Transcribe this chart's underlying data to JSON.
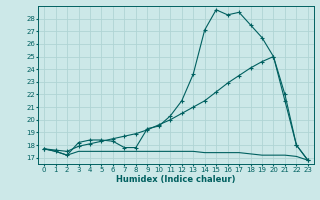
{
  "xlabel": "Humidex (Indice chaleur)",
  "bg_color": "#cce8e8",
  "grid_color": "#b0d4d4",
  "line_color": "#006060",
  "xlim": [
    -0.5,
    23.5
  ],
  "ylim": [
    16.5,
    29.0
  ],
  "xticks": [
    0,
    1,
    2,
    3,
    4,
    5,
    6,
    7,
    8,
    9,
    10,
    11,
    12,
    13,
    14,
    15,
    16,
    17,
    18,
    19,
    20,
    21,
    22,
    23
  ],
  "yticks": [
    17,
    18,
    19,
    20,
    21,
    22,
    23,
    24,
    25,
    26,
    27,
    28
  ],
  "line1_x": [
    0,
    1,
    2,
    3,
    4,
    5,
    6,
    7,
    8,
    9,
    10,
    11,
    12,
    13,
    14,
    15,
    16,
    17,
    18,
    19,
    20,
    21,
    22,
    23
  ],
  "line1_y": [
    17.7,
    17.5,
    17.2,
    18.2,
    18.4,
    18.4,
    18.3,
    17.8,
    17.8,
    19.3,
    19.5,
    20.3,
    21.5,
    23.6,
    27.1,
    28.7,
    28.3,
    28.5,
    27.5,
    26.5,
    25.0,
    21.5,
    18.0,
    16.8
  ],
  "line2_x": [
    0,
    1,
    2,
    3,
    4,
    5,
    6,
    7,
    8,
    9,
    10,
    11,
    12,
    13,
    14,
    15,
    16,
    17,
    18,
    19,
    20,
    21,
    22,
    23
  ],
  "line2_y": [
    17.7,
    17.6,
    17.5,
    17.9,
    18.1,
    18.3,
    18.5,
    18.7,
    18.9,
    19.2,
    19.6,
    20.0,
    20.5,
    21.0,
    21.5,
    22.2,
    22.9,
    23.5,
    24.1,
    24.6,
    25.0,
    22.0,
    18.0,
    16.8
  ],
  "line3_x": [
    0,
    1,
    2,
    3,
    4,
    5,
    6,
    7,
    8,
    9,
    10,
    11,
    12,
    13,
    14,
    15,
    16,
    17,
    18,
    19,
    20,
    21,
    22,
    23
  ],
  "line3_y": [
    17.7,
    17.5,
    17.2,
    17.5,
    17.5,
    17.5,
    17.5,
    17.5,
    17.5,
    17.5,
    17.5,
    17.5,
    17.5,
    17.5,
    17.4,
    17.4,
    17.4,
    17.4,
    17.3,
    17.2,
    17.2,
    17.2,
    17.1,
    16.8
  ]
}
